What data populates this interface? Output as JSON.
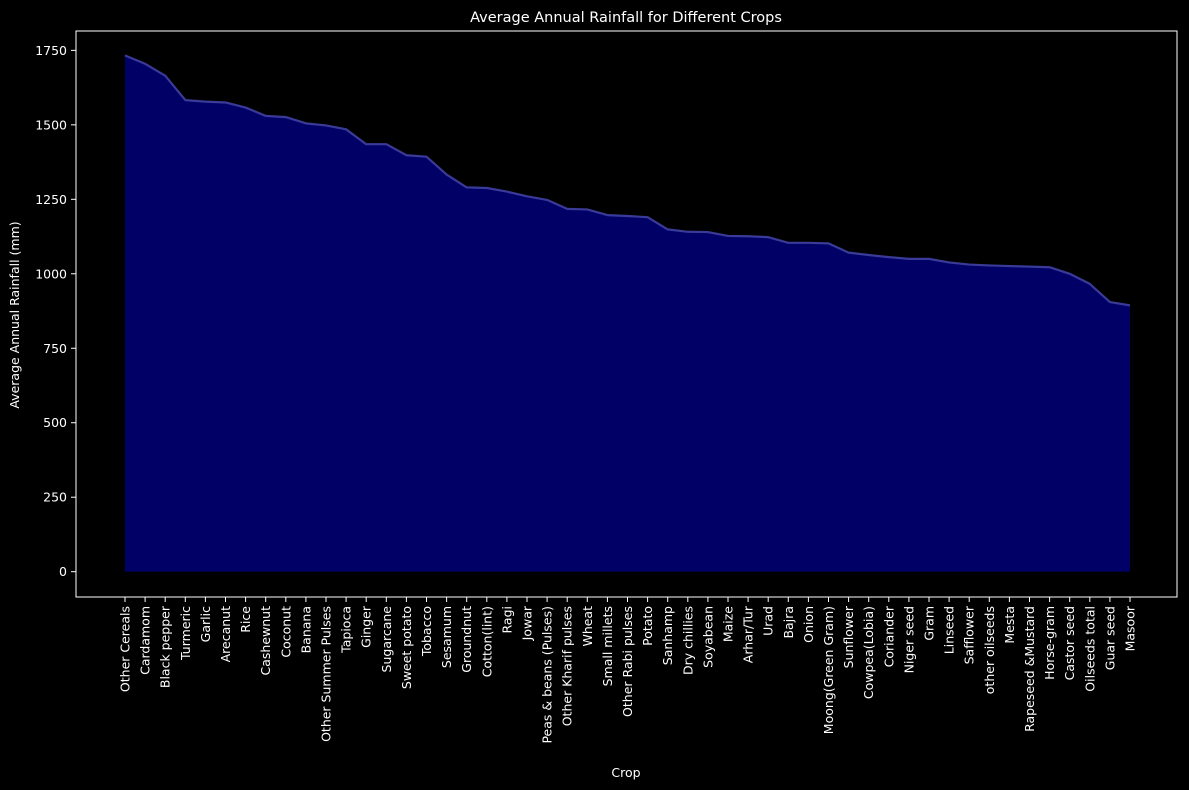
{
  "chart_data": {
    "type": "area",
    "title": "Average Annual Rainfall for Different Crops",
    "xlabel": "Crop",
    "ylabel": "Average Annual Rainfall (mm)",
    "ylim": [
      -85,
      1815
    ],
    "yticks": [
      0,
      250,
      500,
      750,
      1000,
      1250,
      1500,
      1750
    ],
    "grid": false,
    "fill_color": "#000066",
    "line_color": "#3a3a99",
    "background": "#000000",
    "text_color": "#ffffff",
    "categories": [
      "Other Cereals",
      "Cardamom",
      "Black pepper",
      "Turmeric",
      "Garlic",
      "Arecanut",
      "Rice",
      "Cashewnut",
      "Coconut",
      "Banana",
      "Other Summer Pulses",
      "Tapioca",
      "Ginger",
      "Sugarcane",
      "Sweet potato",
      "Tobacco",
      "Sesamum",
      "Groundnut",
      "Cotton(lint)",
      "Ragi",
      "Jowar",
      "Peas & beans (Pulses)",
      "Other Kharif pulses",
      "Wheat",
      "Small millets",
      "Other  Rabi pulses",
      "Potato",
      "Sanhamp",
      "Dry chillies",
      "Soyabean",
      "Maize",
      "Arhar/Tur",
      "Urad",
      "Bajra",
      "Onion",
      "Moong(Green Gram)",
      "Sunflower",
      "Cowpea(Lobia)",
      "Coriander",
      "Niger seed",
      "Gram",
      "Linseed",
      "Safflower",
      "other oilseeds",
      "Mesta",
      "Rapeseed &Mustard",
      "Horse-gram",
      "Castor seed",
      "Oilseeds total",
      "Guar seed",
      "Masoor"
    ],
    "values": [
      1733,
      1705,
      1665,
      1583,
      1578,
      1575,
      1558,
      1530,
      1526,
      1505,
      1498,
      1485,
      1435,
      1435,
      1398,
      1393,
      1333,
      1290,
      1288,
      1276,
      1260,
      1248,
      1218,
      1216,
      1197,
      1194,
      1190,
      1149,
      1141,
      1140,
      1127,
      1126,
      1123,
      1104,
      1104,
      1102,
      1071,
      1063,
      1056,
      1050,
      1050,
      1038,
      1031,
      1028,
      1026,
      1024,
      1022,
      1000,
      966,
      905,
      894
    ]
  }
}
